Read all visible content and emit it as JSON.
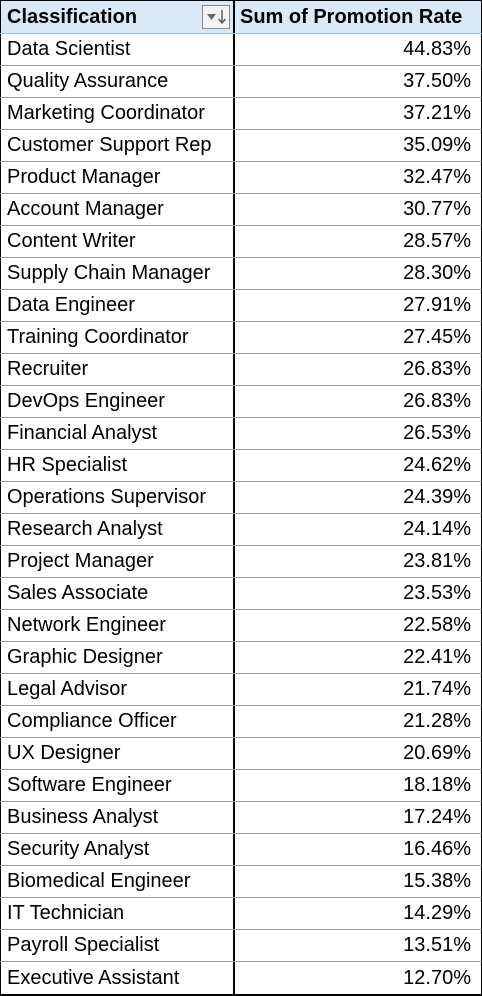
{
  "header": {
    "col1": "Classification",
    "col2": "Sum of Promotion Rate",
    "filter_icon": "sort-descending-filter-icon"
  },
  "rows": [
    {
      "label": "Data Scientist",
      "value": "44.83%"
    },
    {
      "label": "Quality Assurance",
      "value": "37.50%"
    },
    {
      "label": "Marketing Coordinator",
      "value": "37.21%"
    },
    {
      "label": "Customer Support Rep",
      "value": "35.09%"
    },
    {
      "label": "Product Manager",
      "value": "32.47%"
    },
    {
      "label": "Account Manager",
      "value": "30.77%"
    },
    {
      "label": "Content Writer",
      "value": "28.57%"
    },
    {
      "label": "Supply Chain Manager",
      "value": "28.30%"
    },
    {
      "label": "Data Engineer",
      "value": "27.91%"
    },
    {
      "label": "Training Coordinator",
      "value": "27.45%"
    },
    {
      "label": "Recruiter",
      "value": "26.83%"
    },
    {
      "label": "DevOps Engineer",
      "value": "26.83%"
    },
    {
      "label": "Financial Analyst",
      "value": "26.53%"
    },
    {
      "label": "HR Specialist",
      "value": "24.62%"
    },
    {
      "label": "Operations Supervisor",
      "value": "24.39%"
    },
    {
      "label": "Research Analyst",
      "value": "24.14%"
    },
    {
      "label": "Project Manager",
      "value": "23.81%"
    },
    {
      "label": "Sales Associate",
      "value": "23.53%"
    },
    {
      "label": "Network Engineer",
      "value": "22.58%"
    },
    {
      "label": "Graphic Designer",
      "value": "22.41%"
    },
    {
      "label": "Legal Advisor",
      "value": "21.74%"
    },
    {
      "label": "Compliance Officer",
      "value": "21.28%"
    },
    {
      "label": "UX Designer",
      "value": "20.69%"
    },
    {
      "label": "Software Engineer",
      "value": "18.18%"
    },
    {
      "label": "Business Analyst",
      "value": "17.24%"
    },
    {
      "label": "Security Analyst",
      "value": "16.46%"
    },
    {
      "label": "Biomedical Engineer",
      "value": "15.38%"
    },
    {
      "label": "IT Technician",
      "value": "14.29%"
    },
    {
      "label": "Payroll Specialist",
      "value": "13.51%"
    },
    {
      "label": "Executive Assistant",
      "value": "12.70%"
    }
  ],
  "colors": {
    "header_fill": "#dae9f8",
    "grid_line": "#9e9e9e",
    "border": "#000000"
  }
}
